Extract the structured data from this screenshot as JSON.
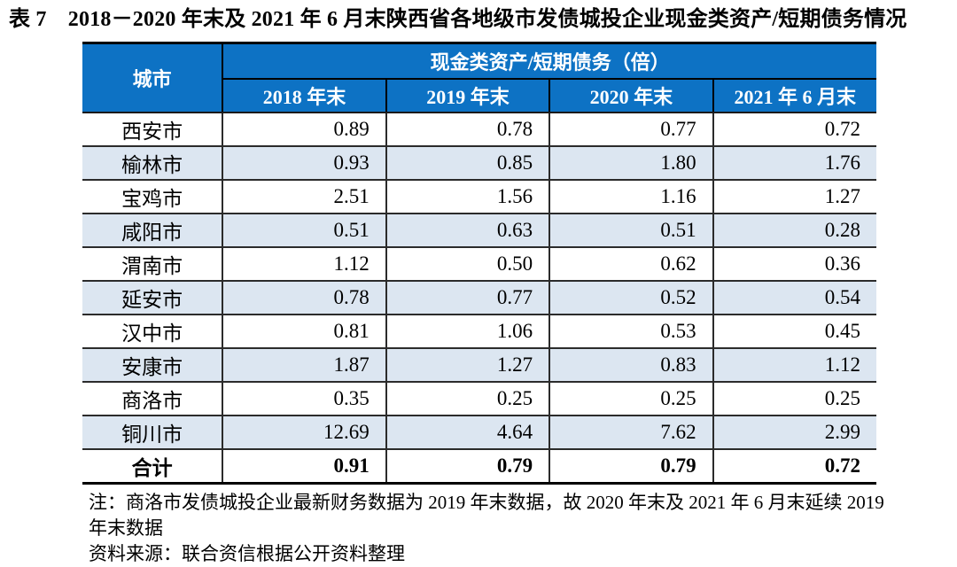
{
  "title": "表 7　2018－2020 年末及 2021 年 6 月末陕西省各地级市发债城投企业现金类资产/短期债务情况",
  "colors": {
    "header_bg": "#0d72c4",
    "header_text": "#ffffff",
    "band_bg": "#dce6f1",
    "border_dark": "#000000",
    "border_row": "#2b2b2b"
  },
  "table": {
    "corner_header": "城市",
    "group_header": "现金类资产/短期债务（倍）",
    "period_headers": [
      "2018 年末",
      "2019 年末",
      "2020 年末",
      "2021 年 6 月末"
    ],
    "rows": [
      {
        "city": "西安市",
        "values": [
          "0.89",
          "0.78",
          "0.77",
          "0.72"
        ]
      },
      {
        "city": "榆林市",
        "values": [
          "0.93",
          "0.85",
          "1.80",
          "1.76"
        ]
      },
      {
        "city": "宝鸡市",
        "values": [
          "2.51",
          "1.56",
          "1.16",
          "1.27"
        ]
      },
      {
        "city": "咸阳市",
        "values": [
          "0.51",
          "0.63",
          "0.51",
          "0.28"
        ]
      },
      {
        "city": "渭南市",
        "values": [
          "1.12",
          "0.50",
          "0.62",
          "0.36"
        ]
      },
      {
        "city": "延安市",
        "values": [
          "0.78",
          "0.77",
          "0.52",
          "0.54"
        ]
      },
      {
        "city": "汉中市",
        "values": [
          "0.81",
          "1.06",
          "0.53",
          "0.45"
        ]
      },
      {
        "city": "安康市",
        "values": [
          "1.87",
          "1.27",
          "0.83",
          "1.12"
        ]
      },
      {
        "city": "商洛市",
        "values": [
          "0.35",
          "0.25",
          "0.25",
          "0.25"
        ]
      },
      {
        "city": "铜川市",
        "values": [
          "12.69",
          "4.64",
          "7.62",
          "2.99"
        ]
      }
    ],
    "total_row": {
      "city": "合计",
      "values": [
        "0.91",
        "0.79",
        "0.79",
        "0.72"
      ]
    }
  },
  "notes": {
    "note": "注：商洛市发债城投企业最新财务数据为 2019 年末数据，故 2020 年末及 2021 年 6 月末延续 2019 年末数据",
    "source": "资料来源：联合资信根据公开资料整理"
  }
}
